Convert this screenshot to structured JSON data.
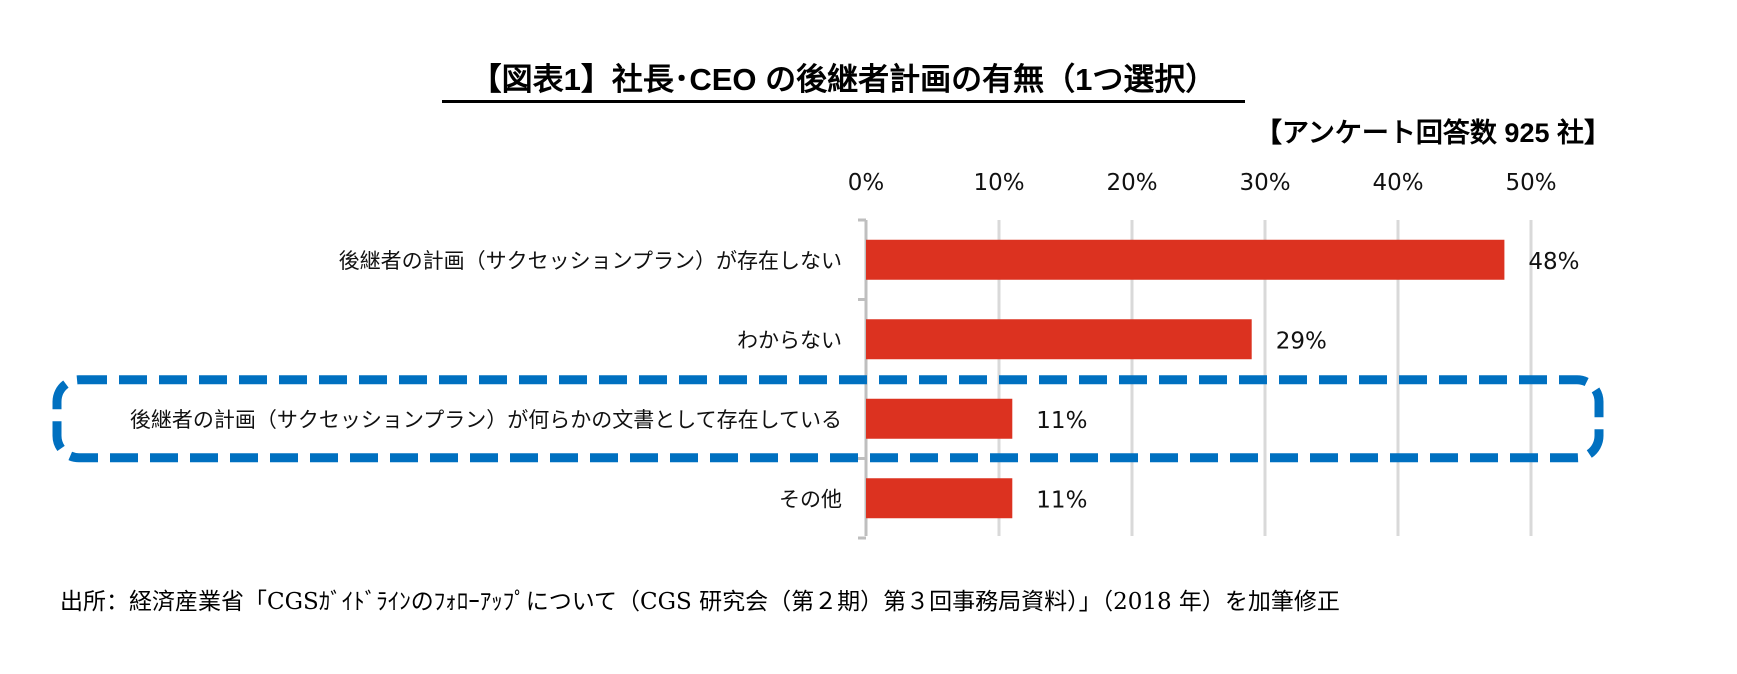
{
  "chart_data": {
    "type": "bar",
    "orientation": "horizontal",
    "title": "【図表1】社長･CEO の後継者計画の有無（1つ選択）",
    "subtitle": "【アンケート回答数 925 社】",
    "categories": [
      "後継者の計画（サクセッションプラン）が存在しない",
      "わからない",
      "後継者の計画（サクセッションプラン）が何らかの文書として存在している",
      "その他"
    ],
    "values": [
      48,
      29,
      11,
      11
    ],
    "data_labels": [
      "48%",
      "29%",
      "11%",
      "11%"
    ],
    "xlabel": "",
    "ylabel": "",
    "xlim": [
      0,
      50
    ],
    "x_ticks": [
      0,
      10,
      20,
      30,
      40,
      50
    ],
    "x_tick_labels": [
      "0%",
      "10%",
      "20%",
      "30%",
      "40%",
      "50%"
    ],
    "x_axis_position": "top",
    "grid": true,
    "legend": "none",
    "highlighted_category_index": 2,
    "annotation": "dashed rounded box highlighting the third category",
    "source": "出所：経済産業省「CGSｶﾞｲﾄﾞﾗｲﾝのﾌｫﾛｰｱｯﾌﾟについて（CGS 研究会（第２期）第３回事務局資料）」（2018 年）を加筆修正",
    "colors": {
      "bar": "#DC3220",
      "grid": "#D9D9D9",
      "highlight_box": "#0070C0",
      "text": "#111111"
    }
  }
}
